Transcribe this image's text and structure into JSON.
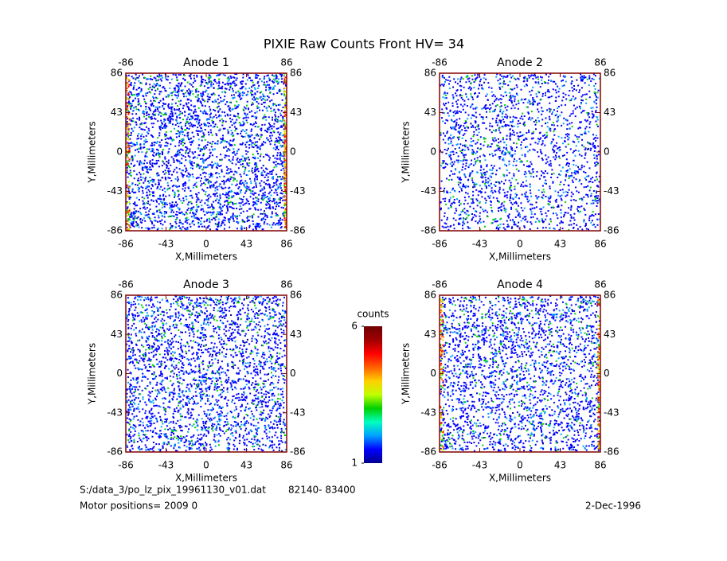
{
  "title": "PIXIE Raw Counts Front HV= 34",
  "chart_data": [
    {
      "type": "heatmap",
      "title": "Anode 1",
      "x_label": "X,Millimeters",
      "y_label": "Y,Millimeters",
      "xlim": [
        -86,
        86
      ],
      "ylim": [
        -86,
        86
      ],
      "xticks": [
        -86,
        -43,
        0,
        43,
        86
      ],
      "yticks": [
        -86,
        -43,
        0,
        43,
        86
      ]
    },
    {
      "type": "heatmap",
      "title": "Anode 2",
      "x_label": "X,Millimeters",
      "y_label": "Y,Millimeters",
      "xlim": [
        -86,
        86
      ],
      "ylim": [
        -86,
        86
      ],
      "xticks": [
        -86,
        -43,
        0,
        43,
        86
      ],
      "yticks": [
        -86,
        -43,
        0,
        43,
        86
      ]
    },
    {
      "type": "heatmap",
      "title": "Anode 3",
      "x_label": "X,Millimeters",
      "y_label": "Y,Millimeters",
      "xlim": [
        -86,
        86
      ],
      "ylim": [
        -86,
        86
      ],
      "xticks": [
        -86,
        -43,
        0,
        43,
        86
      ],
      "yticks": [
        -86,
        -43,
        0,
        43,
        86
      ]
    },
    {
      "type": "heatmap",
      "title": "Anode 4",
      "x_label": "X,Millimeters",
      "y_label": "Y,Millimeters",
      "xlim": [
        -86,
        86
      ],
      "ylim": [
        -86,
        86
      ],
      "xticks": [
        -86,
        -43,
        0,
        43,
        86
      ],
      "yticks": [
        -86,
        -43,
        0,
        43,
        86
      ]
    },
    {
      "type": "colorbar",
      "label": "counts",
      "zlim": [
        1,
        6
      ],
      "zticks": [
        1,
        6
      ],
      "colors": [
        "#00008f",
        "#0000ff",
        "#00a0ff",
        "#00ffc0",
        "#00d000",
        "#c0ff00",
        "#ffd000",
        "#ff6000",
        "#ff0000",
        "#a00000",
        "#700000"
      ]
    }
  ],
  "footer": {
    "file": "S:/data_3/po_lz_pix_19961130_v01.dat",
    "range": "82140- 83400",
    "motor": "Motor positions= 2009 0",
    "date": "2-Dec-1996"
  }
}
